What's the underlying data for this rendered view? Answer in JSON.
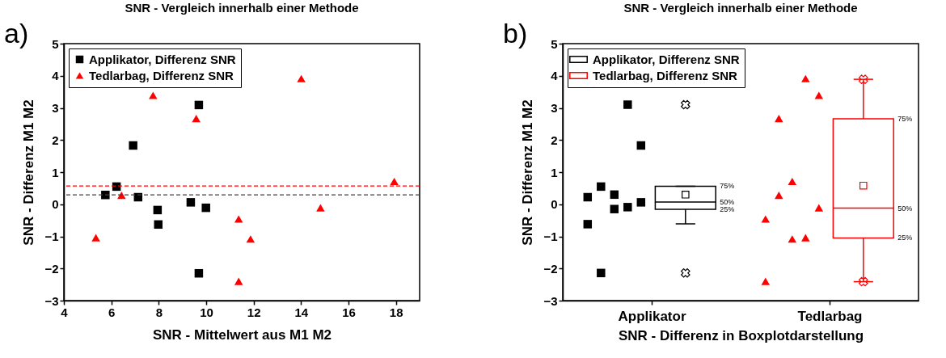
{
  "chart_data": [
    {
      "type": "scatter",
      "title": "SNR - Vergleich  innerhalb einer Methode",
      "xlabel": "SNR - Mittelwert aus M1 M2",
      "ylabel": "SNR - Differenz M1 M2",
      "annotations": [
        "a)"
      ],
      "series": [
        {
          "name": "Applikator, Differenz SNR",
          "color": "#000000",
          "marker": "square",
          "x": [
            5.75,
            6.22,
            6.92,
            7.13,
            7.95,
            7.98,
            9.35,
            9.69,
            9.69,
            9.99
          ],
          "values": [
            0.29,
            0.55,
            1.83,
            0.22,
            -0.18,
            -0.63,
            0.06,
            3.09,
            -2.15,
            -0.11
          ]
        },
        {
          "name": "Tedlarbag, Differenz SNR",
          "color": "#ff0000",
          "marker": "triangle",
          "x": [
            5.35,
            6.43,
            7.76,
            9.58,
            11.37,
            11.87,
            11.37,
            14.01,
            14.82,
            17.93
          ],
          "values": [
            -1.04,
            0.28,
            3.39,
            2.67,
            -0.46,
            -1.08,
            -2.4,
            3.91,
            -0.11,
            0.71
          ]
        }
      ],
      "ref_lines": [
        {
          "axis": "y",
          "value": 0.29,
          "color": "#404040",
          "line_style": "dashed"
        },
        {
          "axis": "y",
          "value": 0.57,
          "color": "#ff0000",
          "line_style": "dashed"
        }
      ],
      "xlim": [
        4,
        19
      ],
      "xticks": [
        4,
        6,
        8,
        10,
        12,
        14,
        16,
        18
      ],
      "ylim": [
        -3,
        5
      ],
      "yticks": [
        -3,
        -2,
        -1,
        0,
        1,
        2,
        3,
        4,
        5
      ],
      "grid": false,
      "legend": "top left"
    },
    {
      "type": "box",
      "title": "SNR - Vergleich  innerhalb einer Methode",
      "xlabel": "SNR - Differenz in Boxplotdarstellung",
      "ylabel": "SNR - Differenz M1 M2",
      "categories": [
        "Applikator",
        "Tedlarbag"
      ],
      "annotations": [
        "b)",
        "75%",
        "50%",
        "25%",
        "75%",
        "50%",
        "25%"
      ],
      "series": [
        {
          "type": "box",
          "name": "Applikator, Differenz SNR",
          "color": "#000000",
          "boxes": [
            {
              "low": -0.61,
              "q1": -0.16,
              "median": 0.07,
              "q3": 0.56,
              "high": 0.56,
              "mean": 0.3,
              "outliers": [
                3.1,
                -2.14
              ]
            },
            null
          ]
        },
        {
          "type": "box",
          "name": "Tedlarbag, Differenz SNR",
          "color": "#ff0000",
          "boxes": [
            null,
            {
              "low": -2.41,
              "q1": -1.05,
              "median": -0.12,
              "q3": 2.66,
              "high": 3.89,
              "mean": 0.58,
              "outliers": [
                3.89,
                -2.41
              ]
            }
          ]
        },
        {
          "type": "scatter",
          "color": "#000000",
          "marker": "square",
          "x": [
            "Applikator",
            "Applikator",
            "Applikator",
            "Applikator",
            "Applikator",
            "Applikator",
            "Applikator",
            "Applikator",
            "Applikator",
            "Applikator"
          ],
          "values": [
            0.22,
            0.55,
            -0.15,
            3.1,
            1.83,
            -0.62,
            -2.14,
            0.3,
            -0.09,
            0.06
          ]
        },
        {
          "type": "scatter",
          "color": "#ff0000",
          "marker": "triangle",
          "x": [
            "Tedlarbag",
            "Tedlarbag",
            "Tedlarbag",
            "Tedlarbag",
            "Tedlarbag",
            "Tedlarbag",
            "Tedlarbag",
            "Tedlarbag",
            "Tedlarbag",
            "Tedlarbag"
          ],
          "values": [
            -0.46,
            2.67,
            0.71,
            -1.04,
            3.39,
            -2.4,
            0.28,
            -1.08,
            3.91,
            -0.11
          ]
        }
      ],
      "ylim": [
        -3,
        5
      ],
      "yticks": [
        -3,
        -2,
        -1,
        0,
        1,
        2,
        3,
        4,
        5
      ],
      "grid": false,
      "legend": "top left"
    }
  ]
}
